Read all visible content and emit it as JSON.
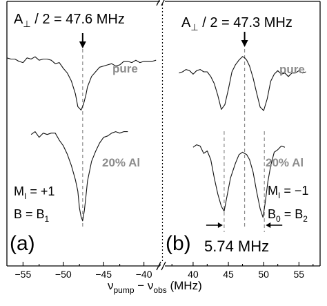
{
  "chart_data": {
    "type": "line",
    "xlabel_main": "ν",
    "xlabel_sub1": "pump",
    "xlabel_mid": " − ν",
    "xlabel_sub2": "obs",
    "xlabel_unit": " (MHz)",
    "panels": [
      {
        "label": "(a)",
        "xlim": [
          -57,
          -38
        ],
        "xticks": [
          -55,
          -50,
          -45,
          -40
        ],
        "ylim": [
          0,
          1
        ],
        "guide_x": -47.6,
        "headline_parts": {
          "A": "A",
          "perp": "⊥",
          "rest": " / 2 = 47.6 MHz"
        },
        "mi_text": {
          "M": "M",
          "sub": "I",
          "rest": " = +1"
        },
        "b_text": {
          "B": "B = B",
          "sub": "1"
        },
        "series": [
          {
            "name": "pure",
            "x": [
              -57,
              -56.5,
              -56,
              -55.5,
              -55,
              -54.5,
              -54,
              -53.5,
              -53,
              -52.5,
              -52,
              -51.5,
              -51,
              -50.5,
              -50,
              -49.5,
              -49,
              -48.5,
              -48.2,
              -47.8,
              -47.5,
              -47.2,
              -47,
              -46.5,
              -46,
              -45.5,
              -45,
              -44.5,
              -44,
              -43.5,
              -43,
              -42.5,
              -42,
              -41.5,
              -41,
              -40.5,
              -40,
              -39.5,
              -39,
              -38.5,
              -38.5
            ],
            "y": [
              0.87,
              0.86,
              0.86,
              0.84,
              0.83,
              0.87,
              0.86,
              0.88,
              0.85,
              0.86,
              0.86,
              0.85,
              0.82,
              0.83,
              0.78,
              0.74,
              0.67,
              0.56,
              0.45,
              0.42,
              0.47,
              0.55,
              0.62,
              0.71,
              0.75,
              0.79,
              0.8,
              0.81,
              0.82,
              0.8,
              0.81,
              0.84,
              0.84,
              0.83,
              0.85,
              0.83,
              0.84,
              0.84,
              0.84,
              0.85,
              0.85
            ]
          },
          {
            "name": "20% Al",
            "x": [
              -54,
              -53.5,
              -53,
              -52.5,
              -52,
              -51.5,
              -51,
              -50.5,
              -50,
              -49.5,
              -49,
              -48.5,
              -48.2,
              -48,
              -47.8,
              -47.6,
              -47.4,
              -47.2,
              -47,
              -46.5,
              -46,
              -45.5,
              -45,
              -44.5,
              -44,
              -43.5,
              -43,
              -42.5,
              -42
            ],
            "y": [
              0.66,
              0.68,
              0.64,
              0.67,
              0.66,
              0.67,
              0.67,
              0.62,
              0.58,
              0.52,
              0.44,
              0.34,
              0.26,
              0.14,
              0.08,
              0.05,
              0.12,
              0.22,
              0.33,
              0.47,
              0.54,
              0.6,
              0.64,
              0.65,
              0.67,
              0.68,
              0.67,
              0.68,
              0.68
            ]
          }
        ]
      },
      {
        "label": "(b)",
        "xlim": [
          36,
          58
        ],
        "xticks": [
          40,
          45,
          50,
          55
        ],
        "ylim": [
          0,
          1
        ],
        "guide_x": 47.3,
        "side_guides": [
          44.4,
          50.1
        ],
        "headline_parts": {
          "A": "A",
          "perp": "⊥",
          "rest": " / 2 = 47.3 MHz"
        },
        "mi_text": {
          "M": "M",
          "sub": "I",
          "rest": " = −1"
        },
        "b_text": {
          "B": "B",
          "sub0": "0",
          "mid": " = B",
          "sub": "2"
        },
        "split_label": "5.74 MHz",
        "series": [
          {
            "name": "pure",
            "x": [
              38,
              38.5,
              39,
              39.5,
              40,
              40.5,
              41,
              41.5,
              42,
              42.5,
              43,
              43.5,
              44,
              44.5,
              45,
              45.5,
              46,
              46.5,
              47,
              47.3,
              47.6,
              48,
              48.5,
              49,
              49.5,
              50,
              50.5,
              51,
              51.5,
              52,
              52.5,
              53,
              53.5,
              54,
              54.5,
              55,
              55.5,
              56
            ],
            "y": [
              0.79,
              0.8,
              0.82,
              0.81,
              0.78,
              0.81,
              0.82,
              0.8,
              0.8,
              0.76,
              0.7,
              0.6,
              0.48,
              0.52,
              0.65,
              0.8,
              0.86,
              0.9,
              0.93,
              0.92,
              0.9,
              0.85,
              0.75,
              0.62,
              0.5,
              0.47,
              0.57,
              0.72,
              0.78,
              0.81,
              0.78,
              0.79,
              0.76,
              0.79,
              0.79,
              0.81,
              0.79,
              0.8
            ]
          },
          {
            "name": "20% Al",
            "x": [
              40,
              40.5,
              41,
              41.5,
              42,
              42.5,
              43,
              43.5,
              44,
              44.4,
              44.8,
              45.3,
              46,
              46.5,
              47,
              47.3,
              47.6,
              48,
              48.5,
              49,
              49.5,
              49.9,
              50.2,
              50.6,
              51,
              51.5,
              52,
              52.5,
              53
            ],
            "y": [
              0.6,
              0.62,
              0.61,
              0.55,
              0.57,
              0.5,
              0.35,
              0.22,
              0.12,
              0.08,
              0.2,
              0.35,
              0.47,
              0.54,
              0.56,
              0.55,
              0.54,
              0.5,
              0.4,
              0.24,
              0.1,
              0.03,
              0.14,
              0.32,
              0.45,
              0.56,
              0.58,
              0.61,
              0.6
            ]
          }
        ]
      }
    ]
  }
}
